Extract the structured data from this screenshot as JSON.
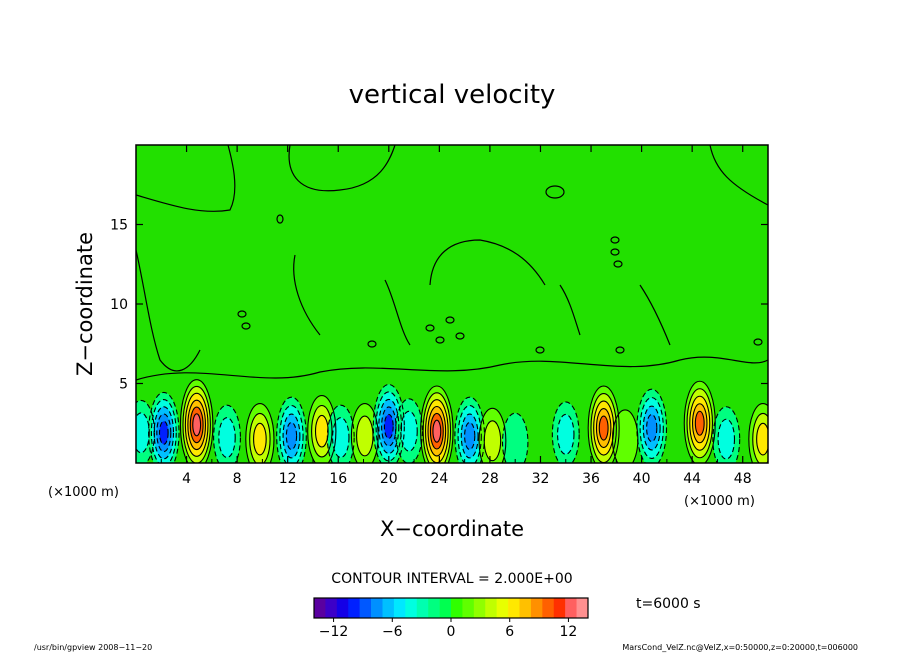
{
  "chart_data": {
    "type": "heatmap",
    "title": "vertical velocity",
    "xlabel": "X−coordinate",
    "ylabel": "Z−coordinate",
    "x_unit": "(×1000 m)",
    "z_unit": "(×1000 m)",
    "xlim": [
      0,
      50
    ],
    "ylim": [
      0,
      20
    ],
    "x_ticks": [
      4,
      8,
      12,
      16,
      20,
      24,
      28,
      32,
      36,
      40,
      44,
      48
    ],
    "y_ticks": [
      5,
      10,
      15
    ],
    "contour_interval": "CONTOUR INTERVAL = 2.000E+00",
    "time_label": "t=6000 s",
    "colorbar": {
      "range": [
        -14,
        14
      ],
      "ticks": [
        -12,
        -6,
        0,
        6,
        12
      ],
      "colors": [
        "#5a00a0",
        "#3c00c8",
        "#1400e6",
        "#0020ff",
        "#0058ff",
        "#0090ff",
        "#00c0ff",
        "#00e8ff",
        "#00ffe0",
        "#00ffb0",
        "#00ff80",
        "#00ff50",
        "#30ff00",
        "#60ff00",
        "#90ff00",
        "#c0ff00",
        "#e8ff00",
        "#ffe800",
        "#ffc000",
        "#ff9000",
        "#ff6000",
        "#ff3000",
        "#ff6060",
        "#ff9090"
      ]
    },
    "cells": [
      {
        "x": 0.4,
        "z": 1.9,
        "w": -4
      },
      {
        "x": 2.2,
        "z": 1.9,
        "w": -9
      },
      {
        "x": 4.8,
        "z": 2.4,
        "w": 12
      },
      {
        "x": 7.2,
        "z": 1.6,
        "w": -4
      },
      {
        "x": 9.8,
        "z": 1.5,
        "w": 6
      },
      {
        "x": 12.3,
        "z": 1.7,
        "w": -8
      },
      {
        "x": 14.7,
        "z": 2.0,
        "w": 6
      },
      {
        "x": 16.2,
        "z": 1.6,
        "w": -4
      },
      {
        "x": 18.1,
        "z": 1.7,
        "w": 4
      },
      {
        "x": 20.0,
        "z": 2.3,
        "w": -10
      },
      {
        "x": 21.6,
        "z": 2.0,
        "w": -4
      },
      {
        "x": 23.8,
        "z": 2.0,
        "w": 12
      },
      {
        "x": 26.4,
        "z": 1.7,
        "w": -8
      },
      {
        "x": 28.2,
        "z": 1.4,
        "w": 4
      },
      {
        "x": 30.0,
        "z": 1.3,
        "w": -2
      },
      {
        "x": 34.0,
        "z": 1.8,
        "w": -4
      },
      {
        "x": 37.0,
        "z": 2.2,
        "w": 10
      },
      {
        "x": 38.7,
        "z": 1.5,
        "w": 2
      },
      {
        "x": 40.8,
        "z": 2.2,
        "w": -8
      },
      {
        "x": 44.6,
        "z": 2.5,
        "w": 10
      },
      {
        "x": 46.7,
        "z": 1.5,
        "w": -4
      },
      {
        "x": 49.6,
        "z": 1.5,
        "w": 6
      }
    ]
  },
  "footer": {
    "left": "/usr/bin/gpview   2008−11−20",
    "right": "MarsCond_VelZ.nc@VelZ,x=0:50000,z=0:20000,t=006000"
  }
}
